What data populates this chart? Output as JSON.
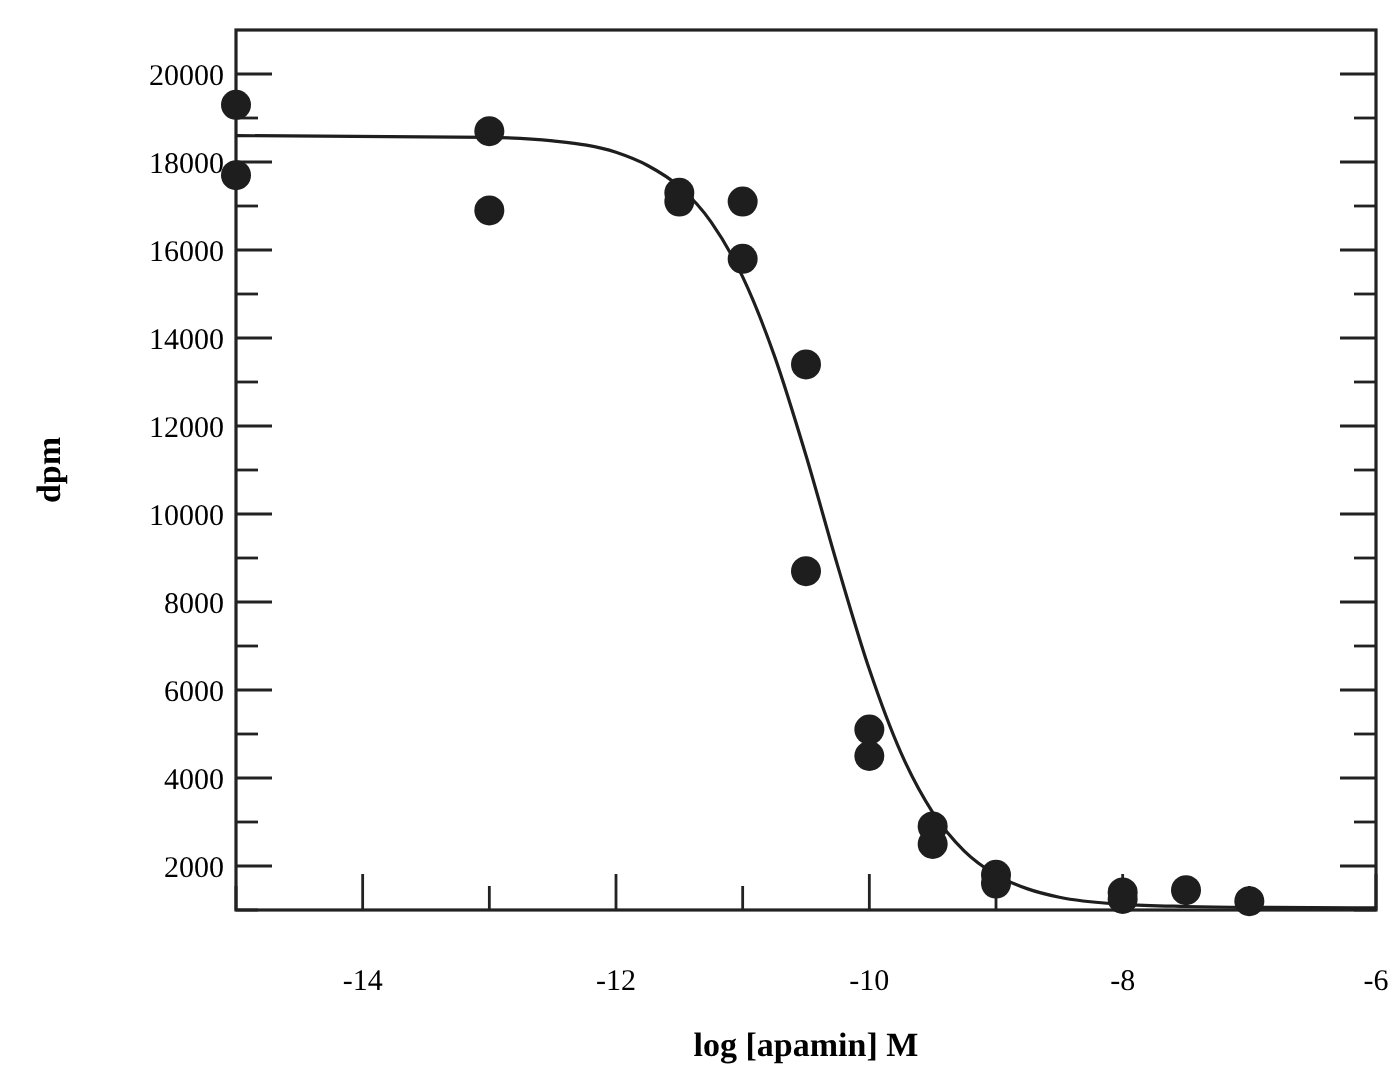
{
  "chart_data": {
    "type": "scatter",
    "xlabel": "log [apamin] M",
    "ylabel": "dpm",
    "xlim": [
      -15,
      -6
    ],
    "ylim": [
      1000,
      21000
    ],
    "xticks": [
      {
        "value": -15,
        "label": null
      },
      -14,
      {
        "value": -13,
        "label": null
      },
      -12,
      {
        "value": -11,
        "label": null
      },
      -10,
      {
        "value": -9,
        "label": null
      },
      -8,
      {
        "value": -7,
        "label": null
      },
      -6
    ],
    "yticks": [
      {
        "value": 1000,
        "label": null
      },
      2000,
      {
        "value": 3000,
        "label": null
      },
      4000,
      {
        "value": 5000,
        "label": null
      },
      6000,
      {
        "value": 7000,
        "label": null
      },
      8000,
      {
        "value": 9000,
        "label": null
      },
      10000,
      {
        "value": 11000,
        "label": null
      },
      12000,
      {
        "value": 13000,
        "label": null
      },
      14000,
      {
        "value": 15000,
        "label": null
      },
      16000,
      {
        "value": 17000,
        "label": null
      },
      18000,
      {
        "value": 19000,
        "label": null
      },
      20000
    ],
    "grid": false,
    "marker": "circle",
    "series": [
      {
        "color": "#1e1e1e",
        "x": [
          -15,
          -15,
          -13,
          -13,
          -11.5,
          -11.5,
          -11,
          -11,
          -10.5,
          -10.5,
          -10,
          -10,
          -9.5,
          -9.5,
          -9,
          -9,
          -8,
          -8,
          -7.5,
          -7
        ],
        "values": [
          19300,
          17700,
          18700,
          16900,
          17300,
          17100,
          17100,
          15800,
          13400,
          8700,
          5100,
          4500,
          2900,
          2500,
          1800,
          1600,
          1400,
          1250,
          1450,
          1200
        ]
      },
      {
        "type": "line",
        "color": "#1e1e1e",
        "line_style": "solid",
        "marker": "none",
        "x": [
          -15,
          -13,
          -12.5,
          -12,
          -11.75,
          -11.5,
          -11.25,
          -11,
          -10.75,
          -10.5,
          -10.25,
          -10,
          -9.75,
          -9.5,
          -9.25,
          -9,
          -8.75,
          -8.5,
          -8,
          -7.5,
          -7,
          -6
        ],
        "values": [
          18600,
          18560,
          18480,
          18220,
          17920,
          17440,
          16640,
          15390,
          13600,
          11330,
          8820,
          6470,
          4570,
          3220,
          2340,
          1800,
          1480,
          1290,
          1130,
          1080,
          1060,
          1050
        ]
      }
    ]
  }
}
